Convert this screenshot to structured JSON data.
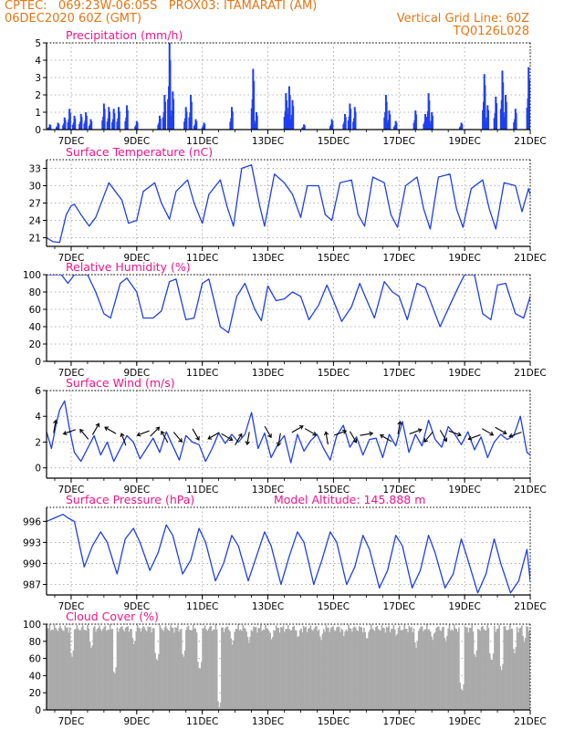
{
  "header": {
    "line1_left": "CPTEC:   069:23W-06:05S   PROX03: ITAMARATI (AM)",
    "line2_left": "06DEC2020 60Z (GMT)",
    "line2_right": "Vertical Grid Line: 60Z",
    "line3_right": "TQ0126L028"
  },
  "x_axis": {
    "ticks": [
      "7DEC",
      "9DEC",
      "11DEC",
      "13DEC",
      "15DEC",
      "17DEC",
      "19DEC",
      "21DEC"
    ],
    "start_day": 6.25,
    "end_day": 21.0
  },
  "colors": {
    "line": "#2040e0",
    "bar": "#1f3ff0",
    "cloud": "#aaaaaa",
    "title": "#e8188c",
    "header": "#e07818"
  },
  "chart_data": [
    {
      "type": "bar",
      "title": "Precipitation (mm/h)",
      "ylim": [
        0,
        5
      ],
      "yticks": [
        "0",
        "1",
        "2",
        "3",
        "4",
        "5"
      ],
      "bursts": [
        {
          "day": 6.35,
          "value": 0.3
        },
        {
          "day": 6.6,
          "value": 0.4
        },
        {
          "day": 6.8,
          "value": 0.7
        },
        {
          "day": 6.95,
          "value": 1.2
        },
        {
          "day": 7.1,
          "value": 0.8
        },
        {
          "day": 7.3,
          "value": 0.9
        },
        {
          "day": 7.45,
          "value": 1.0
        },
        {
          "day": 7.6,
          "value": 0.6
        },
        {
          "day": 8.0,
          "value": 1.5
        },
        {
          "day": 8.15,
          "value": 1.3
        },
        {
          "day": 8.3,
          "value": 1.2
        },
        {
          "day": 8.45,
          "value": 1.3
        },
        {
          "day": 8.7,
          "value": 1.4
        },
        {
          "day": 9.0,
          "value": 0.5
        },
        {
          "day": 9.7,
          "value": 0.8
        },
        {
          "day": 9.85,
          "value": 2.0
        },
        {
          "day": 10.0,
          "value": 5.0
        },
        {
          "day": 10.1,
          "value": 2.2
        },
        {
          "day": 10.5,
          "value": 1.3
        },
        {
          "day": 10.65,
          "value": 2.0
        },
        {
          "day": 10.8,
          "value": 0.6
        },
        {
          "day": 11.05,
          "value": 0.4
        },
        {
          "day": 11.9,
          "value": 1.3
        },
        {
          "day": 12.55,
          "value": 3.5
        },
        {
          "day": 12.65,
          "value": 1.0
        },
        {
          "day": 13.55,
          "value": 2.1
        },
        {
          "day": 13.65,
          "value": 2.5
        },
        {
          "day": 13.75,
          "value": 1.7
        },
        {
          "day": 14.1,
          "value": 0.3
        },
        {
          "day": 14.95,
          "value": 0.6
        },
        {
          "day": 15.35,
          "value": 0.9
        },
        {
          "day": 15.5,
          "value": 1.5
        },
        {
          "day": 15.65,
          "value": 1.3
        },
        {
          "day": 16.6,
          "value": 2.0
        },
        {
          "day": 16.7,
          "value": 1.1
        },
        {
          "day": 16.9,
          "value": 0.5
        },
        {
          "day": 17.5,
          "value": 1.1
        },
        {
          "day": 17.8,
          "value": 0.9
        },
        {
          "day": 17.9,
          "value": 2.1
        },
        {
          "day": 18.0,
          "value": 1.0
        },
        {
          "day": 18.9,
          "value": 0.4
        },
        {
          "day": 19.6,
          "value": 3.2
        },
        {
          "day": 19.7,
          "value": 1.4
        },
        {
          "day": 19.95,
          "value": 1.9
        },
        {
          "day": 20.15,
          "value": 3.4
        },
        {
          "day": 20.25,
          "value": 2.0
        },
        {
          "day": 20.55,
          "value": 1.2
        },
        {
          "day": 20.95,
          "value": 3.6
        }
      ]
    },
    {
      "type": "line",
      "title": "Surface Temperature (nC)",
      "ylim": [
        19.5,
        34.5
      ],
      "yticks": [
        "21",
        "24",
        "27",
        "30",
        "33"
      ],
      "days": [
        6.25,
        6.45,
        6.65,
        6.85,
        7.0,
        7.1,
        7.3,
        7.55,
        7.75,
        7.95,
        8.15,
        8.55,
        8.75,
        9.0,
        9.2,
        9.55,
        9.75,
        10.0,
        10.2,
        10.55,
        10.75,
        11.0,
        11.2,
        11.55,
        11.75,
        11.95,
        12.2,
        12.5,
        12.75,
        12.9,
        13.2,
        13.5,
        13.75,
        14.0,
        14.2,
        14.55,
        14.75,
        14.95,
        15.2,
        15.55,
        15.75,
        15.95,
        16.2,
        16.55,
        16.75,
        16.95,
        17.2,
        17.55,
        17.75,
        17.95,
        18.2,
        18.55,
        18.75,
        18.95,
        19.2,
        19.55,
        19.75,
        19.95,
        20.2,
        20.55,
        20.75,
        20.95,
        21.0
      ],
      "values": [
        21.0,
        20.3,
        20.2,
        25.0,
        26.5,
        26.8,
        25.0,
        23.0,
        24.5,
        27.5,
        30.5,
        27.5,
        23.5,
        24.0,
        29.0,
        30.5,
        27.0,
        24.2,
        29.0,
        31.0,
        27.0,
        23.5,
        28.5,
        31.0,
        26.5,
        23.0,
        33.0,
        33.6,
        26.5,
        23.0,
        32.0,
        30.5,
        28.5,
        24.5,
        30.0,
        30.0,
        25.0,
        24.0,
        30.5,
        31.0,
        25.0,
        23.0,
        31.5,
        30.5,
        25.0,
        22.8,
        30.0,
        31.5,
        26.0,
        22.5,
        31.5,
        32.0,
        26.0,
        22.8,
        29.5,
        31.0,
        26.0,
        22.5,
        30.5,
        30.0,
        25.5,
        29.5,
        28.5
      ]
    },
    {
      "type": "line",
      "title": "Relative Humidity (%)",
      "ylim": [
        0,
        100
      ],
      "yticks": [
        "0",
        "20",
        "40",
        "60",
        "80",
        "100"
      ],
      "days": [
        6.25,
        6.5,
        6.7,
        6.9,
        7.1,
        7.3,
        7.5,
        7.75,
        8.0,
        8.2,
        8.5,
        8.7,
        9.0,
        9.2,
        9.5,
        9.75,
        10.0,
        10.2,
        10.5,
        10.75,
        11.0,
        11.2,
        11.55,
        11.8,
        12.05,
        12.3,
        12.6,
        12.8,
        13.0,
        13.25,
        13.5,
        13.75,
        14.0,
        14.25,
        14.55,
        14.8,
        15.0,
        15.25,
        15.55,
        15.8,
        16.0,
        16.25,
        16.55,
        16.8,
        17.0,
        17.25,
        17.55,
        17.8,
        18.0,
        18.25,
        18.55,
        18.8,
        19.0,
        19.3,
        19.55,
        19.8,
        20.0,
        20.25,
        20.55,
        20.8,
        21.0
      ],
      "values": [
        100,
        100,
        100,
        90,
        100,
        100,
        100,
        80,
        55,
        50,
        90,
        96,
        80,
        50,
        50,
        58,
        92,
        95,
        48,
        50,
        90,
        95,
        40,
        33,
        75,
        90,
        60,
        47,
        87,
        70,
        72,
        80,
        75,
        48,
        65,
        88,
        70,
        46,
        63,
        90,
        72,
        50,
        92,
        80,
        75,
        48,
        90,
        85,
        65,
        40,
        65,
        85,
        100,
        100,
        55,
        48,
        88,
        90,
        55,
        50,
        75
      ]
    },
    {
      "type": "line",
      "title": "Surface Wind (m/s)",
      "ylim": [
        -0.8,
        6
      ],
      "yticks": [
        "0",
        "2",
        "4",
        "6"
      ],
      "days": [
        6.25,
        6.4,
        6.55,
        6.65,
        6.8,
        6.95,
        7.1,
        7.3,
        7.5,
        7.7,
        7.9,
        8.1,
        8.3,
        8.5,
        8.7,
        8.9,
        9.1,
        9.3,
        9.5,
        9.7,
        9.9,
        10.1,
        10.3,
        10.5,
        10.7,
        10.9,
        11.1,
        11.3,
        11.5,
        11.7,
        11.9,
        12.1,
        12.3,
        12.5,
        12.7,
        12.9,
        13.1,
        13.3,
        13.5,
        13.7,
        13.9,
        14.1,
        14.3,
        14.5,
        14.7,
        14.9,
        15.1,
        15.3,
        15.5,
        15.7,
        15.9,
        16.1,
        16.3,
        16.5,
        16.7,
        16.9,
        17.1,
        17.3,
        17.5,
        17.7,
        17.9,
        18.1,
        18.3,
        18.5,
        18.7,
        18.9,
        19.1,
        19.3,
        19.5,
        19.7,
        19.9,
        20.1,
        20.3,
        20.5,
        20.7,
        20.9,
        21.0
      ],
      "values": [
        2.8,
        1.5,
        3.5,
        4.5,
        5.2,
        3.0,
        1.2,
        0.5,
        1.5,
        2.5,
        1.0,
        2.0,
        0.5,
        1.5,
        2.5,
        2.0,
        0.7,
        1.5,
        2.3,
        1.2,
        2.8,
        1.7,
        0.6,
        2.5,
        2.0,
        1.8,
        0.5,
        1.5,
        2.7,
        1.9,
        2.6,
        2.0,
        2.6,
        4.3,
        1.5,
        2.7,
        0.8,
        1.8,
        2.5,
        0.4,
        2.6,
        1.3,
        2.1,
        2.6,
        1.5,
        0.6,
        2.5,
        3.3,
        1.6,
        2.4,
        1.0,
        2.2,
        2.3,
        0.8,
        2.6,
        1.7,
        3.6,
        1.2,
        2.6,
        1.7,
        3.7,
        2.2,
        1.6,
        3.2,
        2.6,
        1.8,
        2.8,
        1.4,
        2.4,
        0.8,
        2.0,
        2.6,
        2.2,
        2.5,
        4.0,
        1.2,
        1.0
      ],
      "arrows": [
        {
          "day": 6.5,
          "value": 3.2,
          "dir_deg": 80
        },
        {
          "day": 6.95,
          "value": 2.8,
          "dir_deg": 200
        },
        {
          "day": 7.4,
          "value": 2.6,
          "dir_deg": 130
        },
        {
          "day": 7.75,
          "value": 3.0,
          "dir_deg": 60
        },
        {
          "day": 8.2,
          "value": 2.9,
          "dir_deg": 150
        },
        {
          "day": 8.6,
          "value": 2.2,
          "dir_deg": 110
        },
        {
          "day": 9.2,
          "value": 2.7,
          "dir_deg": 200
        },
        {
          "day": 9.55,
          "value": 2.8,
          "dir_deg": 45
        },
        {
          "day": 9.85,
          "value": 2.4,
          "dir_deg": 120
        },
        {
          "day": 10.25,
          "value": 2.4,
          "dir_deg": 310
        },
        {
          "day": 10.8,
          "value": 2.6,
          "dir_deg": 300
        },
        {
          "day": 11.35,
          "value": 2.5,
          "dir_deg": 210
        },
        {
          "day": 11.75,
          "value": 2.4,
          "dir_deg": 330
        },
        {
          "day": 12.1,
          "value": 2.2,
          "dir_deg": 60
        },
        {
          "day": 12.4,
          "value": 2.3,
          "dir_deg": 260
        },
        {
          "day": 13.0,
          "value": 2.8,
          "dir_deg": 300
        },
        {
          "day": 13.35,
          "value": 2.2,
          "dir_deg": 260
        },
        {
          "day": 13.9,
          "value": 3.0,
          "dir_deg": 30
        },
        {
          "day": 14.3,
          "value": 2.8,
          "dir_deg": 330
        },
        {
          "day": 14.8,
          "value": 2.3,
          "dir_deg": 100
        },
        {
          "day": 15.2,
          "value": 2.7,
          "dir_deg": 20
        },
        {
          "day": 15.6,
          "value": 2.4,
          "dir_deg": 300
        },
        {
          "day": 16.0,
          "value": 2.6,
          "dir_deg": 10
        },
        {
          "day": 16.6,
          "value": 2.3,
          "dir_deg": 150
        },
        {
          "day": 17.0,
          "value": 3.1,
          "dir_deg": 80
        },
        {
          "day": 17.5,
          "value": 2.8,
          "dir_deg": 20
        },
        {
          "day": 17.9,
          "value": 2.4,
          "dir_deg": 230
        },
        {
          "day": 18.35,
          "value": 2.5,
          "dir_deg": 300
        },
        {
          "day": 18.7,
          "value": 2.7,
          "dir_deg": 340
        },
        {
          "day": 19.3,
          "value": 2.4,
          "dir_deg": 200
        },
        {
          "day": 19.7,
          "value": 2.8,
          "dir_deg": 330
        },
        {
          "day": 20.1,
          "value": 2.9,
          "dir_deg": 330
        },
        {
          "day": 20.55,
          "value": 2.6,
          "dir_deg": 200
        }
      ]
    },
    {
      "type": "line",
      "title": "Surface Pressure (hPa)",
      "annotation": "Model Altitude: 145.888 m",
      "ylim": [
        985.5,
        998
      ],
      "yticks": [
        "987",
        "990",
        "993",
        "996"
      ],
      "days": [
        6.25,
        6.5,
        6.75,
        6.9,
        7.1,
        7.4,
        7.65,
        7.9,
        8.1,
        8.4,
        8.65,
        8.9,
        9.1,
        9.4,
        9.65,
        9.9,
        10.1,
        10.4,
        10.65,
        10.9,
        11.1,
        11.4,
        11.65,
        11.9,
        12.1,
        12.4,
        12.65,
        12.9,
        13.1,
        13.4,
        13.65,
        13.9,
        14.1,
        14.4,
        14.65,
        14.9,
        15.1,
        15.4,
        15.65,
        15.9,
        16.1,
        16.4,
        16.65,
        16.9,
        17.1,
        17.4,
        17.65,
        17.9,
        18.1,
        18.4,
        18.65,
        18.9,
        19.1,
        19.4,
        19.65,
        19.9,
        20.1,
        20.4,
        20.65,
        20.9,
        21.0
      ],
      "values": [
        996.0,
        996.5,
        997.0,
        996.5,
        996.0,
        989.5,
        992.5,
        994.5,
        993.0,
        988.5,
        993.5,
        995.0,
        993.0,
        989.0,
        991.5,
        995.5,
        994.0,
        988.5,
        990.5,
        995.0,
        993.0,
        987.5,
        990.0,
        994.0,
        992.5,
        987.5,
        991.0,
        994.5,
        992.5,
        987.0,
        991.0,
        994.5,
        993.0,
        987.0,
        990.5,
        994.5,
        993.0,
        987.0,
        989.5,
        994.0,
        992.0,
        986.5,
        989.0,
        994.0,
        992.5,
        986.5,
        989.0,
        994.0,
        991.5,
        986.5,
        988.5,
        993.5,
        990.5,
        985.8,
        988.5,
        993.5,
        990.0,
        985.8,
        987.5,
        992.0,
        987.5
      ]
    },
    {
      "type": "area",
      "title": "Cloud Cover (%)",
      "ylim": [
        0,
        100
      ],
      "yticks": [
        "0",
        "20",
        "40",
        "60",
        "80",
        "100"
      ],
      "base_level": 95,
      "dips": [
        {
          "day": 7.0,
          "value": 60
        },
        {
          "day": 7.6,
          "value": 70
        },
        {
          "day": 8.3,
          "value": 40
        },
        {
          "day": 8.9,
          "value": 75
        },
        {
          "day": 9.6,
          "value": 55
        },
        {
          "day": 10.4,
          "value": 60
        },
        {
          "day": 10.9,
          "value": 45
        },
        {
          "day": 11.5,
          "value": 2
        },
        {
          "day": 11.9,
          "value": 75
        },
        {
          "day": 12.4,
          "value": 78
        },
        {
          "day": 13.1,
          "value": 80
        },
        {
          "day": 13.9,
          "value": 82
        },
        {
          "day": 14.6,
          "value": 80
        },
        {
          "day": 15.3,
          "value": 85
        },
        {
          "day": 16.0,
          "value": 80
        },
        {
          "day": 16.9,
          "value": 84
        },
        {
          "day": 17.5,
          "value": 72
        },
        {
          "day": 18.0,
          "value": 80
        },
        {
          "day": 18.4,
          "value": 78
        },
        {
          "day": 18.9,
          "value": 20
        },
        {
          "day": 19.3,
          "value": 60
        },
        {
          "day": 19.8,
          "value": 55
        },
        {
          "day": 20.1,
          "value": 45
        },
        {
          "day": 20.5,
          "value": 65
        },
        {
          "day": 20.8,
          "value": 78
        }
      ]
    }
  ]
}
